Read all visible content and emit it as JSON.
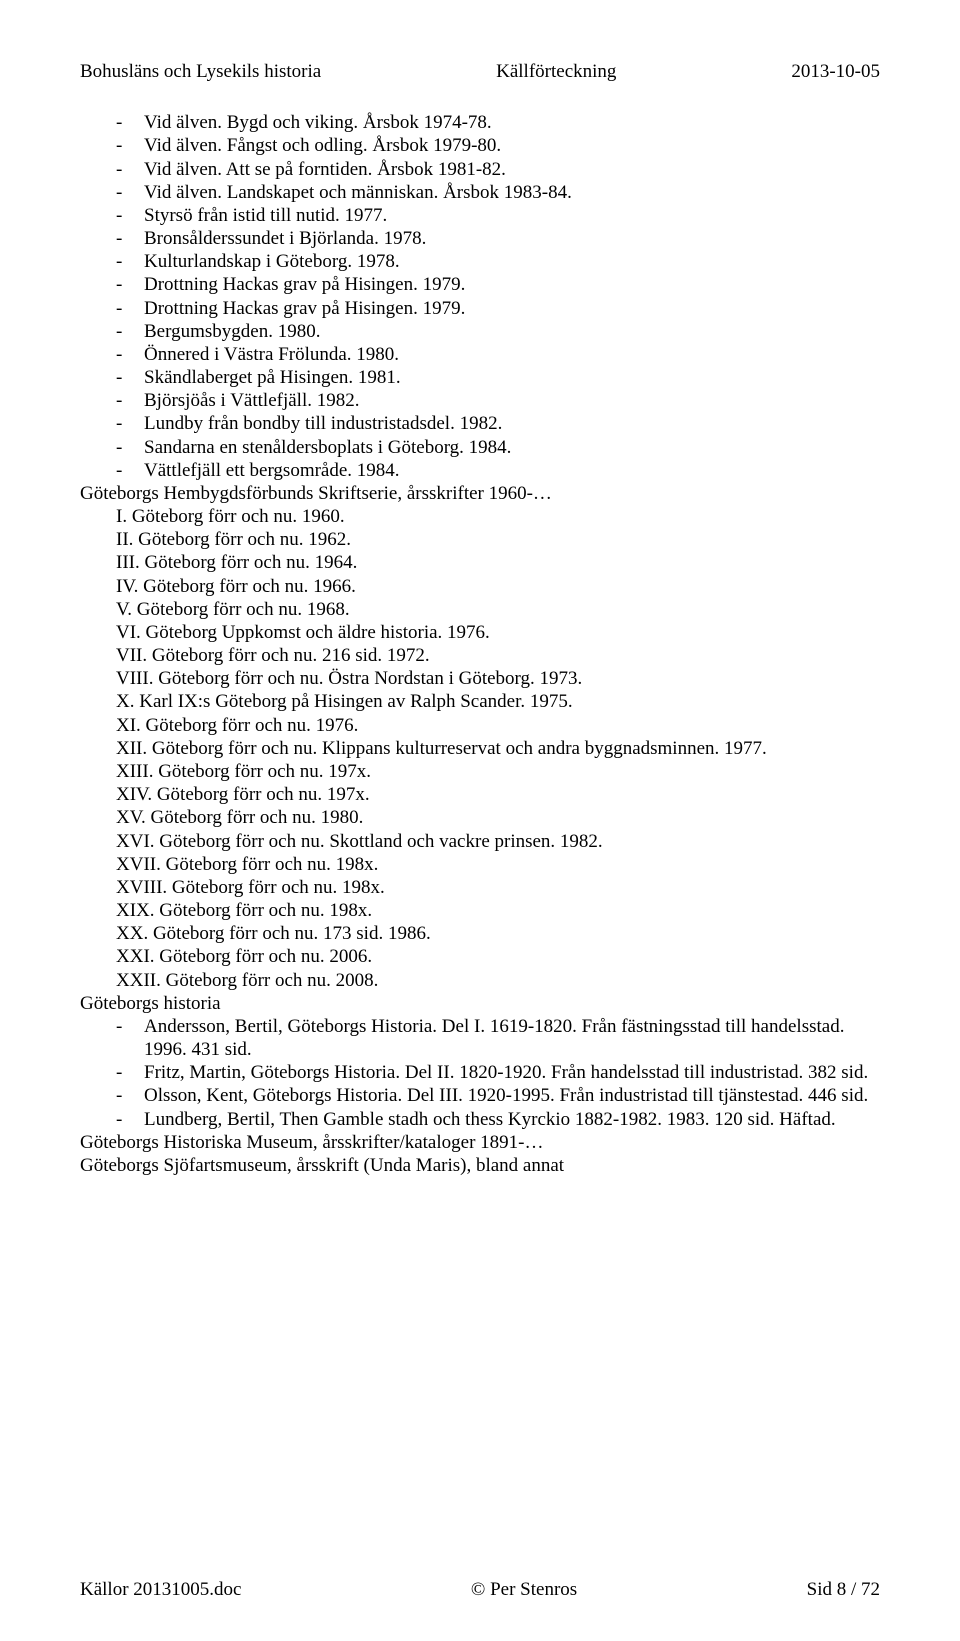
{
  "header": {
    "left": "Bohusläns och Lysekils historia",
    "center": "Källförteckning",
    "right": "2013-10-05"
  },
  "b1": [
    "Vid älven. Bygd och viking. Årsbok 1974-78.",
    "Vid älven. Fångst och odling. Årsbok 1979-80.",
    "Vid älven. Att se på forntiden. Årsbok 1981-82.",
    "Vid älven. Landskapet och människan. Årsbok 1983-84.",
    "Styrsö från istid till nutid. 1977.",
    "Bronsålderssundet i Björlanda. 1978.",
    "Kulturlandskap i Göteborg. 1978.",
    "Drottning Hackas grav på Hisingen. 1979.",
    "Drottning Hackas grav på Hisingen. 1979.",
    "Bergumsbygden. 1980.",
    "Önnered i Västra Frölunda. 1980.",
    "Skändlaberget på Hisingen. 1981.",
    "Björsjöås i Vättlefjäll. 1982.",
    "Lundby från bondby till industristadsdel. 1982.",
    "Sandarna en stenåldersboplats i Göteborg. 1984.",
    "Vättlefjäll ett bergsområde. 1984."
  ],
  "h1": "Göteborgs Hembygdsförbunds Skriftserie, årsskrifter 1960-…",
  "b2": [
    "I. Göteborg förr och nu. 1960.",
    "II. Göteborg förr och nu. 1962.",
    "III. Göteborg förr och nu. 1964.",
    "IV. Göteborg förr och nu. 1966.",
    "V. Göteborg förr och nu. 1968.",
    "VI. Göteborg Uppkomst och äldre historia. 1976.",
    "VII. Göteborg förr och nu. 216 sid. 1972.",
    "VIII. Göteborg förr och nu. Östra Nordstan i Göteborg. 1973.",
    "X. Karl IX:s Göteborg på Hisingen av Ralph Scander. 1975.",
    "XI. Göteborg förr och nu. 1976.",
    "XII. Göteborg förr och nu. Klippans kulturreservat och andra byggnadsminnen. 1977.",
    "XIII. Göteborg förr och nu. 197x.",
    "XIV. Göteborg förr och nu. 197x.",
    "XV. Göteborg förr och nu. 1980.",
    "XVI. Göteborg förr och nu. Skottland och vackre prinsen. 1982.",
    "XVII. Göteborg förr och nu. 198x.",
    "XVIII. Göteborg förr och nu. 198x.",
    "XIX. Göteborg förr och nu. 198x.",
    "XX. Göteborg förr och nu. 173 sid. 1986.",
    "XXI. Göteborg förr och nu. 2006.",
    "XXII. Göteborg förr och nu. 2008."
  ],
  "h2": "Göteborgs historia",
  "b3": [
    "Andersson, Bertil, Göteborgs Historia. Del I. 1619-1820. Från fästningsstad till handelsstad. 1996. 431 sid.",
    "Fritz, Martin, Göteborgs Historia. Del II. 1820-1920. Från handelsstad till industristad. 382 sid.",
    "Olsson, Kent, Göteborgs Historia. Del III. 1920-1995. Från industristad till tjänstestad. 446 sid.",
    "Lundberg, Bertil, Then Gamble stadh och thess Kyrckio 1882-1982. 1983. 120 sid. Häftad."
  ],
  "t1": "Göteborgs Historiska Museum, årsskrifter/kataloger 1891-…",
  "t2": "Göteborgs Sjöfartsmuseum, årsskrift (Unda Maris), bland annat",
  "footer": {
    "left": "Källor 20131005.doc",
    "center": "© Per Stenros",
    "right": "Sid 8 / 72"
  }
}
